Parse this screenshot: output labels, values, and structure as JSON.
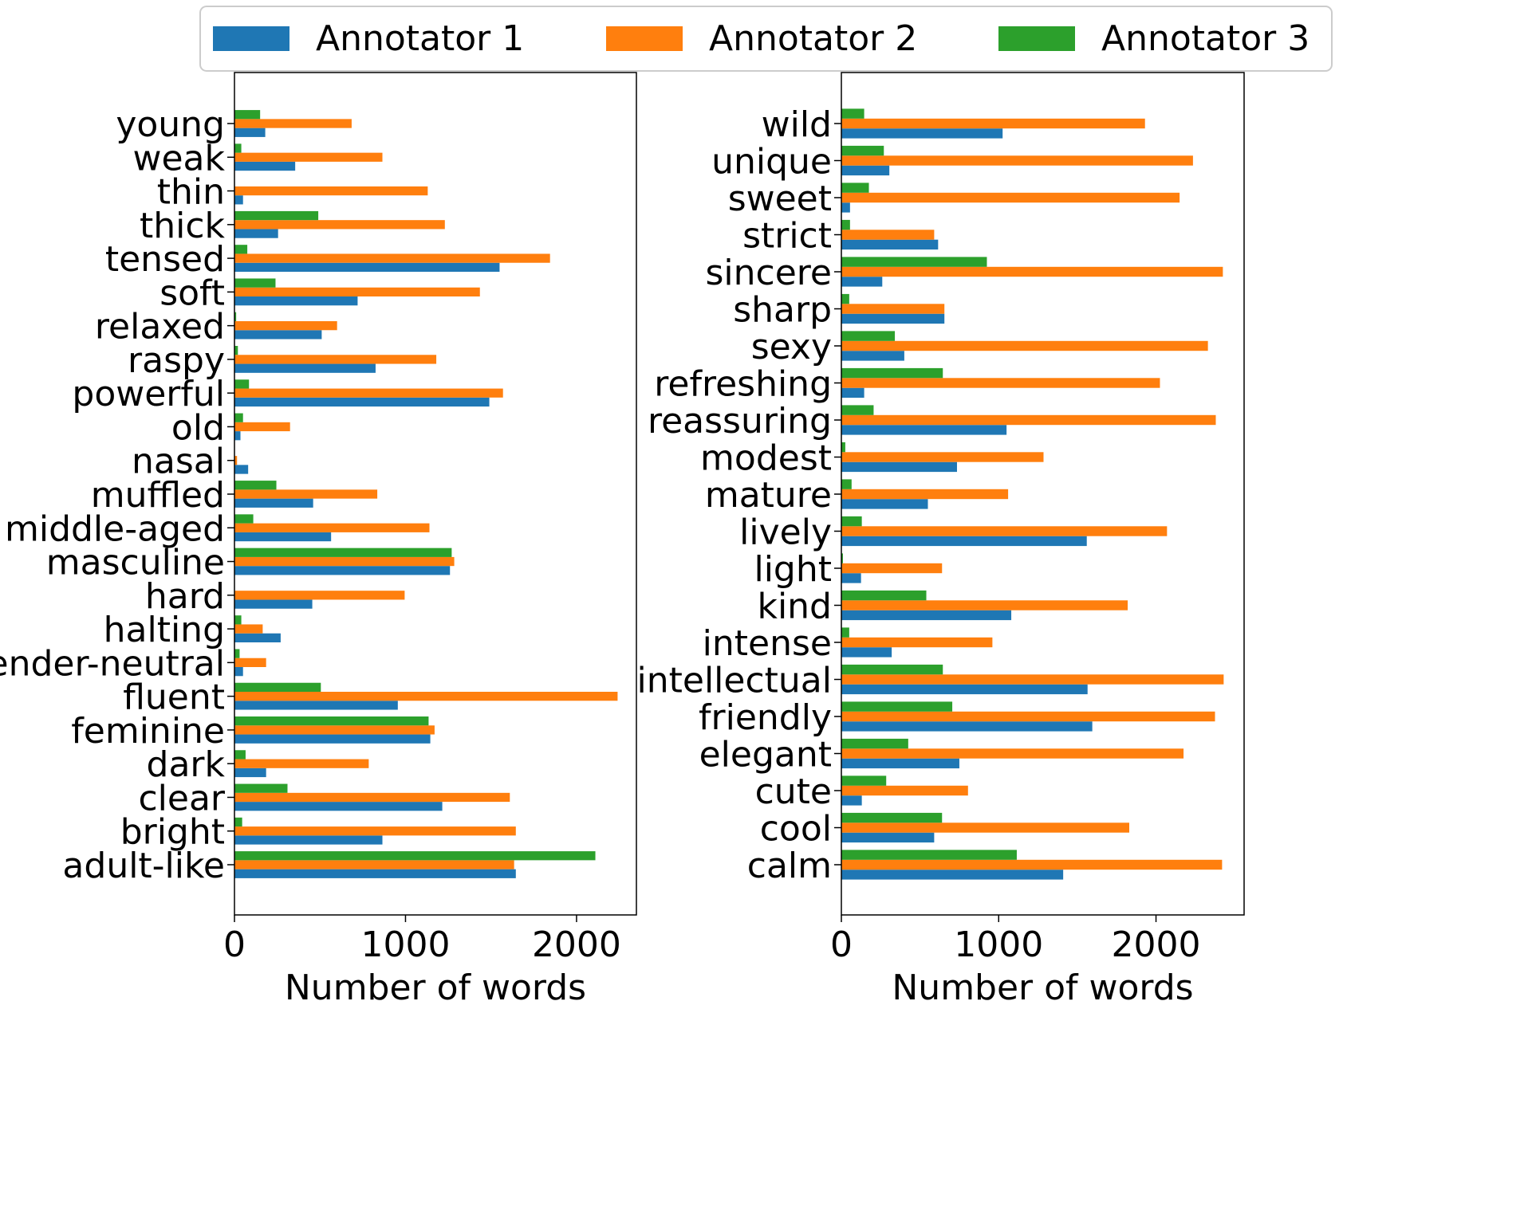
{
  "legend": {
    "entries": [
      {
        "name": "Annotator 1",
        "color": "#1f77b4"
      },
      {
        "name": "Annotator 2",
        "color": "#ff7f0e"
      },
      {
        "name": "Annotator 3",
        "color": "#2ca02c"
      }
    ]
  },
  "chart_data": [
    {
      "type": "bar",
      "orientation": "horizontal",
      "xlabel": "Number of words",
      "xlim": [
        0,
        2350
      ],
      "xticks": [
        0,
        1000,
        2000
      ],
      "categories": [
        "young",
        "weak",
        "thin",
        "thick",
        "tensed",
        "soft",
        "relaxed",
        "raspy",
        "powerful",
        "old",
        "nasal",
        "muffled",
        "middle-aged",
        "masculine",
        "hard",
        "halting",
        "gender-neutral",
        "fluent",
        "feminine",
        "dark",
        "clear",
        "bright",
        "adult-like"
      ],
      "series": [
        {
          "name": "Annotator 1",
          "values": [
            180,
            355,
            50,
            255,
            1550,
            720,
            510,
            825,
            1490,
            35,
            80,
            460,
            565,
            1260,
            455,
            270,
            50,
            955,
            1145,
            185,
            1215,
            865,
            1645
          ]
        },
        {
          "name": "Annotator 2",
          "values": [
            685,
            865,
            1130,
            1230,
            1845,
            1435,
            600,
            1180,
            1570,
            325,
            15,
            835,
            1140,
            1285,
            995,
            165,
            185,
            2240,
            1170,
            785,
            1610,
            1645,
            1635
          ]
        },
        {
          "name": "Annotator 3",
          "values": [
            150,
            40,
            0,
            490,
            75,
            240,
            10,
            20,
            85,
            50,
            0,
            245,
            110,
            1270,
            0,
            40,
            30,
            505,
            1135,
            65,
            310,
            45,
            2110
          ]
        }
      ]
    },
    {
      "type": "bar",
      "orientation": "horizontal",
      "xlabel": "Number of words",
      "xlim": [
        0,
        2560
      ],
      "xticks": [
        0,
        1000,
        2000
      ],
      "categories": [
        "wild",
        "unique",
        "sweet",
        "strict",
        "sincere",
        "sharp",
        "sexy",
        "refreshing",
        "reassuring",
        "modest",
        "mature",
        "lively",
        "light",
        "kind",
        "intense",
        "intellectual",
        "friendly",
        "elegant",
        "cute",
        "cool",
        "calm"
      ],
      "series": [
        {
          "name": "Annotator 1",
          "values": [
            1025,
            305,
            55,
            615,
            260,
            655,
            400,
            145,
            1050,
            735,
            550,
            1560,
            125,
            1080,
            320,
            1565,
            1595,
            750,
            130,
            590,
            1410
          ]
        },
        {
          "name": "Annotator 2",
          "values": [
            1930,
            2235,
            2150,
            590,
            2425,
            655,
            2330,
            2025,
            2380,
            1285,
            1060,
            2070,
            640,
            1820,
            960,
            2430,
            2375,
            2175,
            805,
            1830,
            2420
          ]
        },
        {
          "name": "Annotator 3",
          "values": [
            145,
            270,
            175,
            55,
            925,
            50,
            340,
            645,
            205,
            25,
            65,
            130,
            10,
            540,
            50,
            645,
            705,
            425,
            285,
            640,
            1115
          ]
        }
      ]
    }
  ]
}
